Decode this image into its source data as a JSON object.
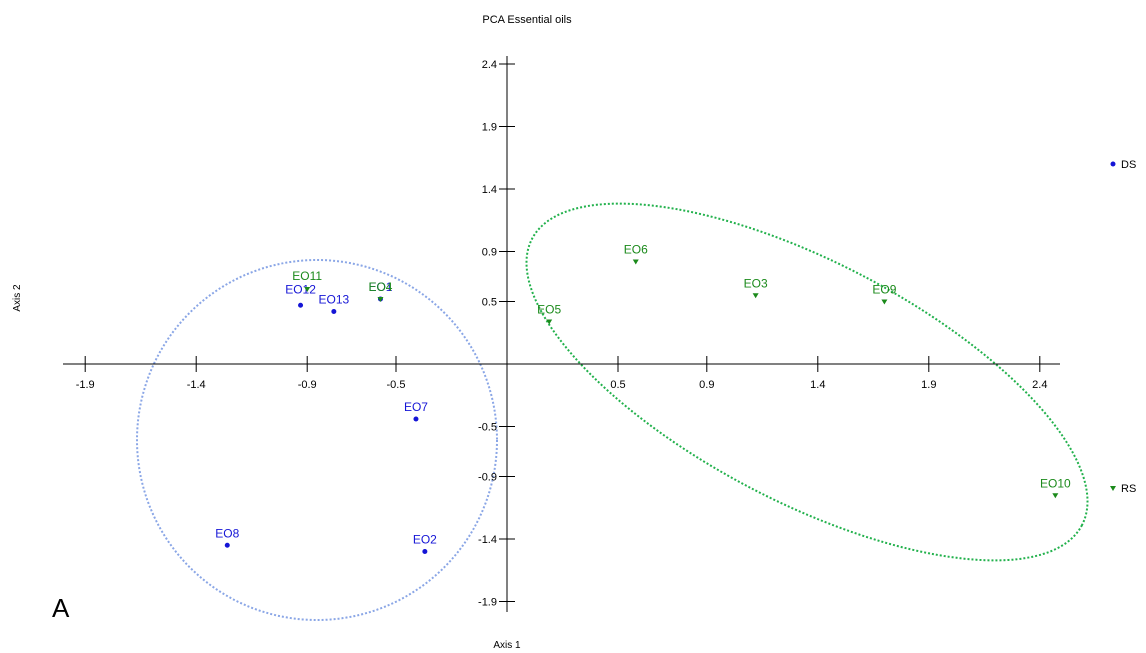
{
  "chart_data": {
    "type": "scatter",
    "title": "PCA Essential oils",
    "xlabel": "Axis 1",
    "ylabel": "Axis 2",
    "panel_letter": "A",
    "xlim": [
      -2.0,
      2.5
    ],
    "ylim": [
      -2.0,
      2.5
    ],
    "x_ticks": [
      -1.9,
      -1.4,
      -0.9,
      -0.5,
      0.5,
      0.9,
      1.4,
      1.9,
      2.4
    ],
    "y_ticks": [
      2.4,
      1.9,
      1.4,
      0.9,
      0.5,
      -0.5,
      -0.9,
      -1.4,
      -1.9
    ],
    "grid": false,
    "legend_position": "right",
    "colors": {
      "DS": "#1515d6",
      "RS": "#1b8a1b",
      "ellipse_blue": "#8aa6e6",
      "ellipse_green": "#22b14c"
    },
    "series": [
      {
        "name": "DS",
        "marker": "dot",
        "points": [
          {
            "label": "EO12",
            "x": -0.93,
            "y": 0.47
          },
          {
            "label": "EO13",
            "x": -0.78,
            "y": 0.42
          },
          {
            "label": "EO1",
            "x": -0.57,
            "y": 0.52
          },
          {
            "label": "EO7",
            "x": -0.41,
            "y": -0.44
          },
          {
            "label": "EO8",
            "x": -1.26,
            "y": -1.45
          },
          {
            "label": "EO2",
            "x": -0.37,
            "y": -1.5
          }
        ]
      },
      {
        "name": "RS",
        "marker": "triangle",
        "points": [
          {
            "label": "EO11",
            "x": -0.9,
            "y": 0.6
          },
          {
            "label": "EO4",
            "x": -0.57,
            "y": 0.52
          },
          {
            "label": "EO5",
            "x": 0.19,
            "y": 0.34
          },
          {
            "label": "EO6",
            "x": 0.58,
            "y": 0.82
          },
          {
            "label": "EO3",
            "x": 1.12,
            "y": 0.55
          },
          {
            "label": "EO9",
            "x": 1.7,
            "y": 0.5
          },
          {
            "label": "EO10",
            "x": 2.47,
            "y": -1.05
          }
        ]
      }
    ]
  }
}
